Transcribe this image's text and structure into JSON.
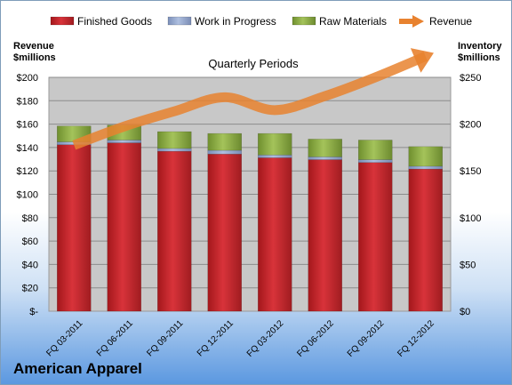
{
  "brand": "American Apparel",
  "chart_data": {
    "type": "bar",
    "stacked": true,
    "title": "Quarterly Periods",
    "y_left_label": [
      "Revenue",
      "$millions"
    ],
    "y_right_label": [
      "Inventory",
      "$millions"
    ],
    "categories": [
      "FQ 03-2011",
      "FQ 06-2011",
      "FQ 09-2011",
      "FQ 12-2011",
      "FQ 03-2012",
      "FQ 06-2012",
      "FQ 09-2012",
      "FQ 12-2012"
    ],
    "y_left_ticks": [
      "$-",
      "$20",
      "$40",
      "$60",
      "$80",
      "$100",
      "$120",
      "$140",
      "$160",
      "$180",
      "$200"
    ],
    "y_right_ticks": [
      "$0",
      "$50",
      "$100",
      "$150",
      "$200",
      "$250"
    ],
    "y_left_lim": [
      0,
      200
    ],
    "y_right_lim": [
      0,
      250
    ],
    "grid": true,
    "legend_position": "top",
    "series": [
      {
        "name": "Finished Goods",
        "axis": "right",
        "color": "#c0282d",
        "values": [
          178,
          180,
          171,
          168,
          164,
          162,
          159,
          152
        ]
      },
      {
        "name": "Work in Progress",
        "axis": "right",
        "color": "#8da0c8",
        "values": [
          3,
          3,
          3,
          4,
          3,
          3,
          3,
          3
        ]
      },
      {
        "name": "Raw Materials",
        "axis": "right",
        "color": "#8aab45",
        "values": [
          17,
          16,
          18,
          18,
          23,
          19,
          21,
          21
        ]
      },
      {
        "name": "Revenue",
        "axis": "left",
        "type": "line",
        "style": "arrow",
        "color": "#e8822f",
        "values": [
          142,
          158,
          171,
          183,
          172,
          184,
          200,
          218
        ]
      }
    ]
  }
}
